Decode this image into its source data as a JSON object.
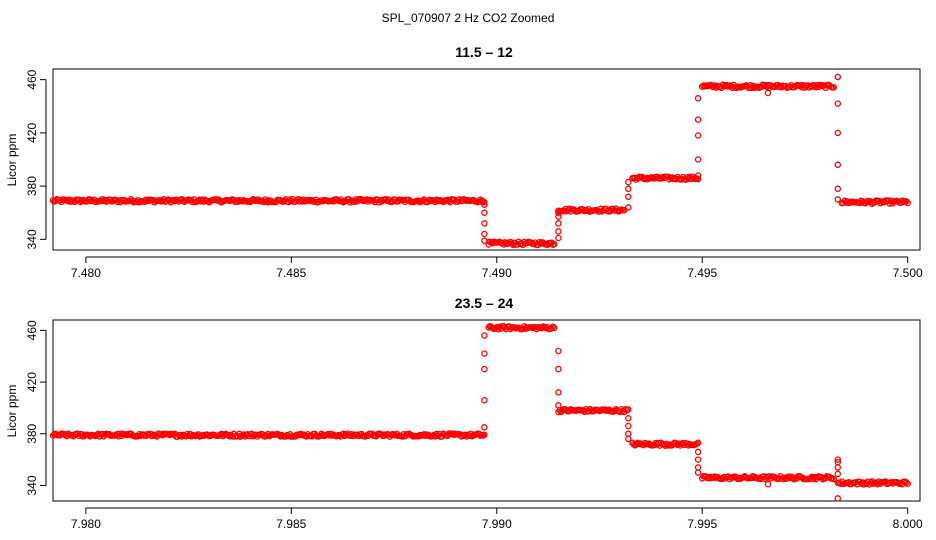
{
  "figure_title": "SPL_070907  2 Hz CO2 Zoomed",
  "chart_data": [
    {
      "type": "scatter",
      "title": "11.5 – 12",
      "xlabel": "",
      "ylabel": "Licor ppm",
      "xlim": [
        7.4792,
        7.5003
      ],
      "ylim": [
        332,
        468
      ],
      "xticks": [
        7.48,
        7.485,
        7.49,
        7.495,
        7.5
      ],
      "xtick_labels": [
        "7.480",
        "7.485",
        "7.490",
        "7.495",
        "7.500"
      ],
      "yticks": [
        340,
        380,
        420,
        460
      ],
      "ytick_labels": [
        "340",
        "380",
        "420",
        "460"
      ],
      "point_color": "#ff0000",
      "grid": false,
      "segments": [
        {
          "x_start": 7.4792,
          "x_end": 7.4897,
          "y": 369
        },
        {
          "x_start": 7.4898,
          "x_end": 7.4914,
          "y": 337
        },
        {
          "x_start": 7.4915,
          "x_end": 7.4931,
          "y": 362
        },
        {
          "x_start": 7.4933,
          "x_end": 7.4949,
          "y": 386
        },
        {
          "x_start": 7.495,
          "x_end": 7.4982,
          "y": 455
        },
        {
          "x_start": 7.4984,
          "x_end": 7.5,
          "y": 368
        }
      ],
      "transitions": [
        {
          "x": 7.4897,
          "values": [
            366,
            360,
            352,
            344,
            339
          ]
        },
        {
          "x": 7.4915,
          "values": [
            341,
            346,
            352,
            357,
            360
          ]
        },
        {
          "x": 7.4932,
          "values": [
            364,
            372,
            378,
            383
          ]
        },
        {
          "x": 7.4949,
          "values": [
            388,
            400,
            418,
            430,
            446
          ]
        },
        {
          "x": 7.4983,
          "values": [
            462,
            442,
            420,
            396,
            378,
            370
          ]
        }
      ],
      "outliers": [
        {
          "x": 7.4966,
          "y": 450
        },
        {
          "x": 7.4983,
          "y": 462
        }
      ]
    },
    {
      "type": "scatter",
      "title": "23.5 – 24",
      "xlabel": "",
      "ylabel": "Licor ppm",
      "xlim": [
        7.9792,
        8.0003
      ],
      "ylim": [
        328,
        468
      ],
      "xticks": [
        7.98,
        7.985,
        7.99,
        7.995,
        8.0
      ],
      "xtick_labels": [
        "7.980",
        "7.985",
        "7.990",
        "7.995",
        "8.000"
      ],
      "yticks": [
        340,
        380,
        420,
        460
      ],
      "ytick_labels": [
        "340",
        "380",
        "420",
        "460"
      ],
      "point_color": "#ff0000",
      "grid": false,
      "segments": [
        {
          "x_start": 7.9792,
          "x_end": 7.9897,
          "y": 379
        },
        {
          "x_start": 7.9898,
          "x_end": 7.9914,
          "y": 462
        },
        {
          "x_start": 7.9915,
          "x_end": 7.9932,
          "y": 398
        },
        {
          "x_start": 7.9933,
          "x_end": 7.9949,
          "y": 372
        },
        {
          "x_start": 7.995,
          "x_end": 7.9982,
          "y": 346
        },
        {
          "x_start": 7.9983,
          "x_end": 8.0,
          "y": 342
        }
      ],
      "transitions": [
        {
          "x": 7.9897,
          "values": [
            385,
            406,
            430,
            442,
            456
          ]
        },
        {
          "x": 7.9915,
          "values": [
            444,
            430,
            412,
            402
          ]
        },
        {
          "x": 7.9932,
          "values": [
            392,
            386,
            380,
            376
          ]
        },
        {
          "x": 7.9949,
          "values": [
            366,
            360,
            354,
            350
          ]
        },
        {
          "x": 7.9983,
          "values": [
            358,
            354,
            349
          ]
        }
      ],
      "outliers": [
        {
          "x": 7.9966,
          "y": 341
        },
        {
          "x": 7.9983,
          "y": 330
        },
        {
          "x": 7.9983,
          "y": 360
        }
      ]
    }
  ]
}
